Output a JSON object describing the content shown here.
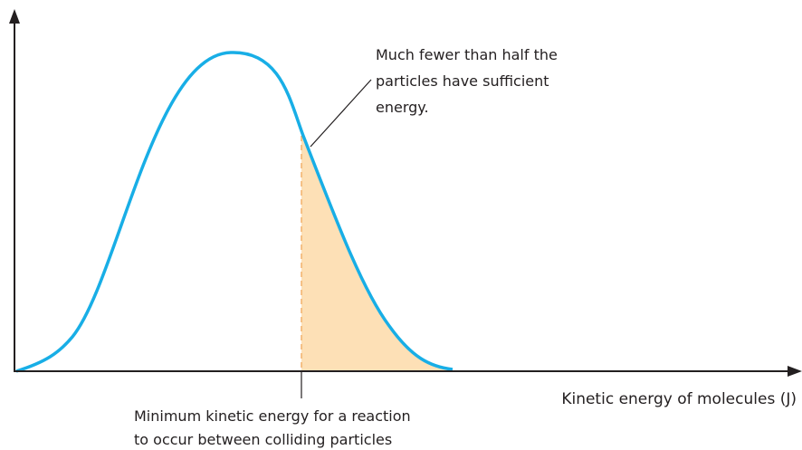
{
  "annotation": {
    "lines": [
      "Much fewer than half the",
      "particles have sufficient",
      "energy."
    ]
  },
  "x_axis": {
    "label": "Kinetic energy of  molecules (J)"
  },
  "threshold_label": {
    "lines": [
      "Minimum kinetic energy for a reaction",
      "to occur between colliding particles"
    ]
  }
}
